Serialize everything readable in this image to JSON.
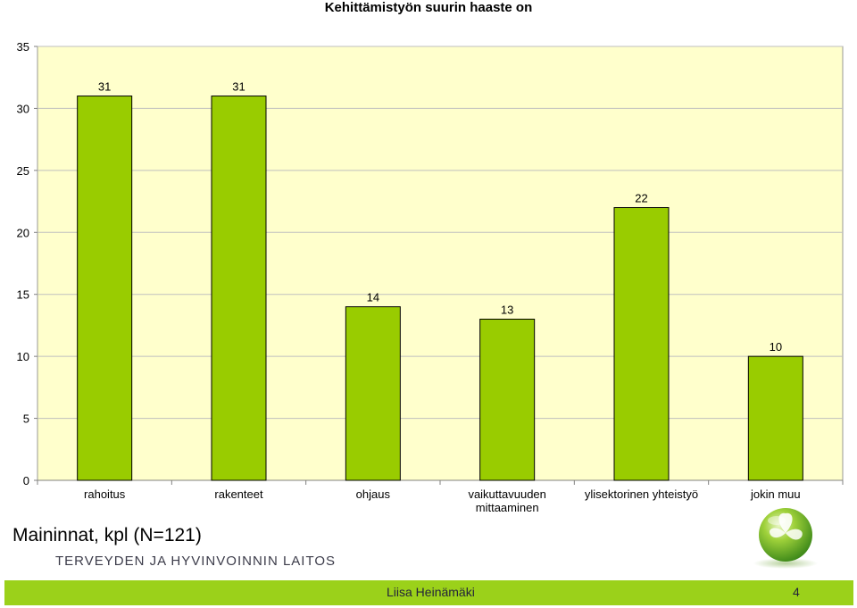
{
  "chart_data": {
    "type": "bar",
    "title": "Kehittämistyön suurin haaste on",
    "categories": [
      [
        "rahoitus"
      ],
      [
        "rakenteet"
      ],
      [
        "ohjaus"
      ],
      [
        "vaikuttavuuden",
        "mittaaminen"
      ],
      [
        "ylisektorinen yhteistyö"
      ],
      [
        "jokin muu"
      ]
    ],
    "values": [
      31,
      31,
      14,
      13,
      22,
      10
    ],
    "ylim": [
      0,
      35
    ],
    "yticks": [
      0,
      5,
      10,
      15,
      20,
      25,
      30,
      35
    ],
    "grid": true,
    "legend": "none",
    "colors": {
      "bar": "#99cc00",
      "bar_border": "#000000",
      "plot_bg": "#ffffcc",
      "grid": "#bfbfbf"
    }
  },
  "subtitle": "Maininnat, kpl (N=121)",
  "organization": "TERVEYDEN JA HYVINVOINNIN LAITOS",
  "footer": {
    "presenter": "Liisa Heinämäki",
    "slide_number": "4",
    "accent": "#9bd11a"
  },
  "logo": {
    "icon": "green-leaf-sphere-icon"
  }
}
